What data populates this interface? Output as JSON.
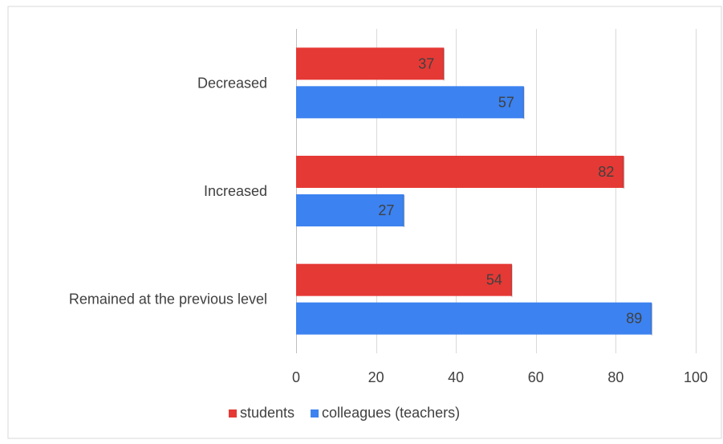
{
  "chart_data": {
    "type": "bar",
    "orientation": "horizontal",
    "categories": [
      "Decreased",
      "Increased",
      "Remained at the previous level"
    ],
    "series": [
      {
        "name": "students",
        "color": "#e53935",
        "values": [
          37,
          82,
          54
        ]
      },
      {
        "name": "colleagues (teachers)",
        "color": "#3c82f0",
        "values": [
          57,
          27,
          89
        ]
      }
    ],
    "xlim": [
      0,
      100
    ],
    "xticks": [
      0,
      20,
      40,
      60,
      80,
      100
    ],
    "grid": true,
    "legend_position": "bottom-center",
    "data_labels": true
  }
}
